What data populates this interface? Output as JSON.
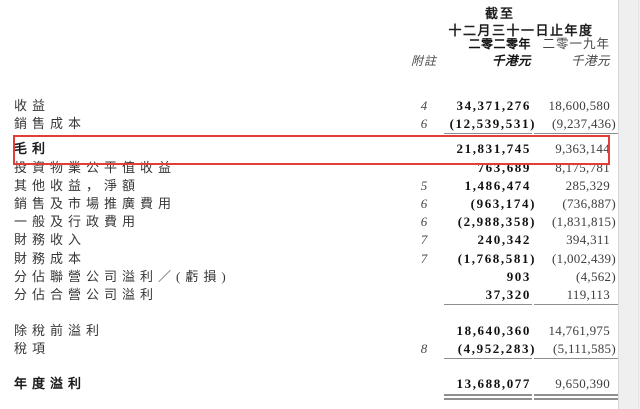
{
  "header": {
    "caption_line1": "截至",
    "caption_line2": "十二月三十一日止年度",
    "year_2020": "二零二零年",
    "year_2019": "二零一九年",
    "note_label": "附註",
    "unit_2020": "千港元",
    "unit_2019": "千港元"
  },
  "highlight": {
    "color": "#e23d36",
    "highlighted_row": "毛利"
  },
  "table": {
    "columns": [
      "label",
      "note",
      "2020",
      "2019"
    ],
    "rows": [
      {
        "label": "收益",
        "note": "4",
        "v2020": "34,371,276",
        "v2019": "18,600,580"
      },
      {
        "label": "銷售成本",
        "note": "6",
        "v2020": "(12,539,531)",
        "v2019": "(9,237,436)",
        "line": true
      },
      {
        "label": "毛利",
        "note": "",
        "v2020": "21,831,745",
        "v2019": "9,363,144",
        "bold": true,
        "gap": 7,
        "highlight": true
      },
      {
        "label": "投資物業公平值收益",
        "note": "",
        "v2020": "763,689",
        "v2019": "8,175,781"
      },
      {
        "label": "其他收益，淨額",
        "note": "5",
        "v2020": "1,486,474",
        "v2019": "285,329"
      },
      {
        "label": "銷售及市場推廣費用",
        "note": "6",
        "v2020": "(963,174)",
        "v2019": "(736,887)"
      },
      {
        "label": "一般及行政費用",
        "note": "6",
        "v2020": "(2,988,358)",
        "v2019": "(1,831,815)"
      },
      {
        "label": "財務收入",
        "note": "7",
        "v2020": "240,342",
        "v2019": "394,311"
      },
      {
        "label": "財務成本",
        "note": "7",
        "v2020": "(1,768,581)",
        "v2019": "(1,002,439)"
      },
      {
        "label": "分佔聯營公司溢利／(虧損)",
        "note": "",
        "v2020": "903",
        "v2019": "(4,562)"
      },
      {
        "label": "分佔合營公司溢利",
        "note": "",
        "v2020": "37,320",
        "v2019": "119,113",
        "line": true
      },
      {
        "label": "除稅前溢利",
        "note": "",
        "v2020": "18,640,360",
        "v2019": "14,761,975",
        "gap": 18
      },
      {
        "label": "稅項",
        "note": "8",
        "v2020": "(4,952,283)",
        "v2019": "(5,111,585)",
        "line": true
      },
      {
        "label": "年度溢利",
        "note": "",
        "v2020": "13,688,077",
        "v2019": "9,650,390",
        "bold": true,
        "gap": 17,
        "double_line": true
      }
    ]
  }
}
